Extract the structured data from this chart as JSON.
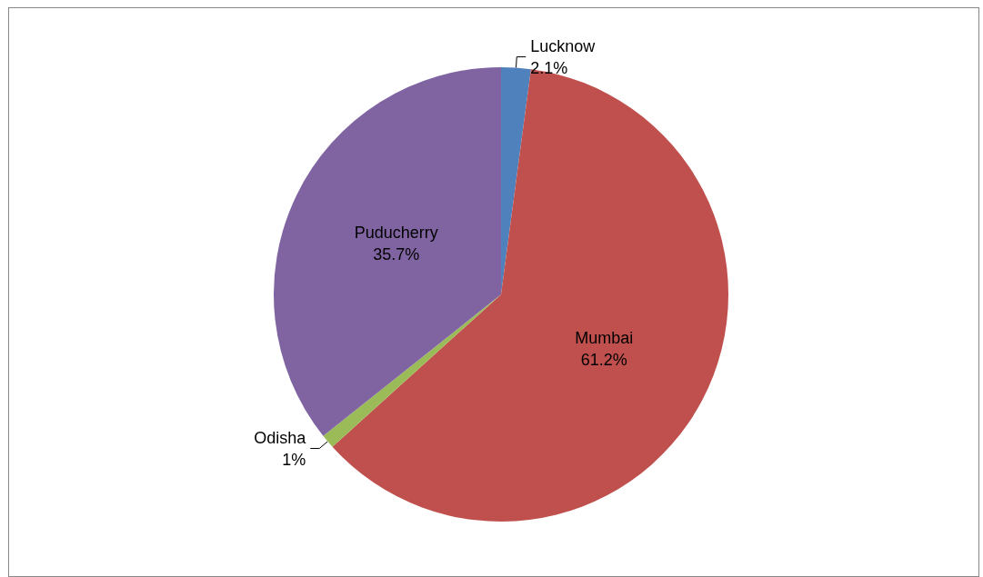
{
  "chart_data": {
    "type": "pie",
    "categories": [
      "Lucknow",
      "Mumbai",
      "Odisha",
      "Puducherry"
    ],
    "values": [
      2.1,
      61.2,
      1,
      35.7
    ],
    "colors": [
      "#4f81bd",
      "#c0504d",
      "#9bbb59",
      "#8064a2"
    ],
    "value_labels": [
      "2.1%",
      "61.2%",
      "1%",
      "35.7%"
    ],
    "legend": false
  }
}
